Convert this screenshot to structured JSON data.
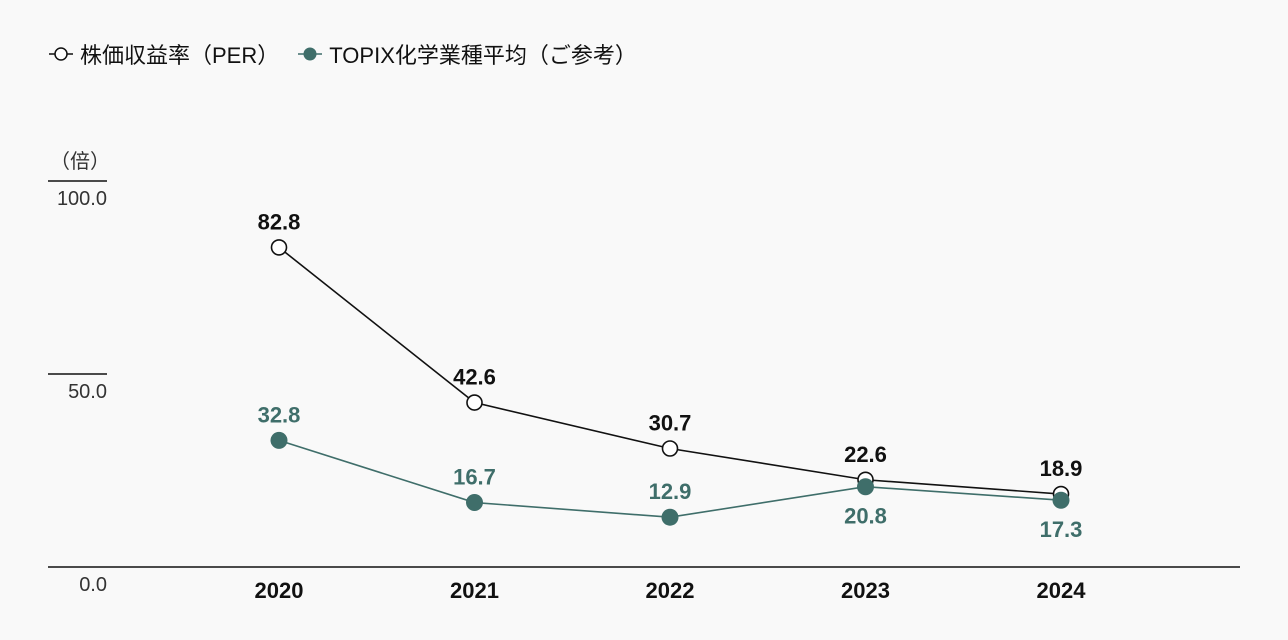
{
  "legend": {
    "per_label": "株価収益率（PER）",
    "topix_label": "TOPIX化学業種平均（ご参考）"
  },
  "colors": {
    "per": "#111111",
    "topix": "#3f6e6a",
    "axis": "#111111",
    "background": "#f9f9f9"
  },
  "chart_data": {
    "type": "line",
    "title": "",
    "xlabel": "",
    "ylabel": "（倍）",
    "categories": [
      "2020",
      "2021",
      "2022",
      "2023",
      "2024"
    ],
    "ylim": [
      0,
      100
    ],
    "yticks": [
      0,
      50,
      100
    ],
    "ytick_labels": [
      "0.0",
      "50.0",
      "100.0"
    ],
    "series": [
      {
        "name": "株価収益率（PER）",
        "values": [
          82.8,
          42.6,
          30.7,
          22.6,
          18.9
        ],
        "labels": [
          "82.8",
          "42.6",
          "30.7",
          "22.6",
          "18.9"
        ],
        "marker": "open-circle",
        "label_position": [
          "above",
          "above",
          "above",
          "above",
          "above"
        ]
      },
      {
        "name": "TOPIX化学業種平均（ご参考）",
        "values": [
          32.8,
          16.7,
          12.9,
          20.8,
          17.3
        ],
        "labels": [
          "32.8",
          "16.7",
          "12.9",
          "20.8",
          "17.3"
        ],
        "marker": "filled-circle",
        "label_position": [
          "above",
          "above",
          "above",
          "below",
          "below"
        ]
      }
    ]
  }
}
